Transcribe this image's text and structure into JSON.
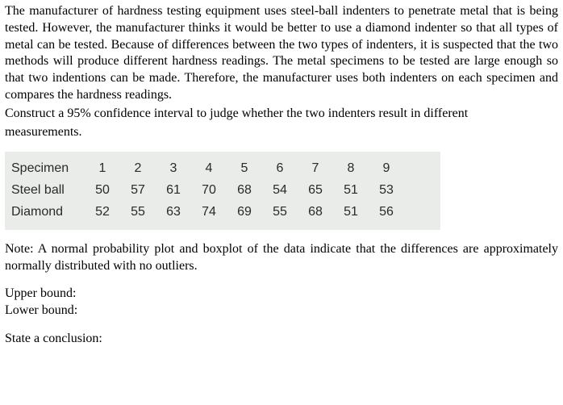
{
  "problem": {
    "p1": "The manufacturer of hardness testing equipment uses steel-ball indenters to penetrate metal that is being tested. However, the manufacturer thinks it would be better to use a diamond indenter so that all types of metal can be tested. Because of differences between the two types of indenters, it is suspected that the two methods will produce different hardness readings. The metal specimens to be tested are large enough so that two indentions can be made. Therefore, the manufacturer uses both indenters on each specimen and compares the hardness readings.",
    "p2a": "Construct a 95% confidence interval to judge whether the two indenters result in different",
    "p2b": "measurements."
  },
  "table": {
    "background_color": "#e9ece9",
    "font_family": "Arial",
    "font_size": 16,
    "rows": [
      {
        "label": "Specimen",
        "cells": [
          "1",
          "2",
          "3",
          "4",
          "5",
          "6",
          "7",
          "8",
          "9"
        ]
      },
      {
        "label": "Steel ball",
        "cells": [
          "50",
          "57",
          "61",
          "70",
          "68",
          "54",
          "65",
          "51",
          "53"
        ]
      },
      {
        "label": "Diamond",
        "cells": [
          "52",
          "55",
          "63",
          "74",
          "69",
          "55",
          "68",
          "51",
          "56"
        ]
      }
    ]
  },
  "note": "Note: A normal probability plot and boxplot of the data indicate that the differences are approximately normally distributed with no outliers.",
  "answers": {
    "upper_label": "Upper bound:",
    "lower_label": "Lower bound:",
    "conclusion_label": "State a conclusion:"
  },
  "colors": {
    "text": "#000000",
    "table_text": "#2a2a2a",
    "background": "#ffffff"
  }
}
